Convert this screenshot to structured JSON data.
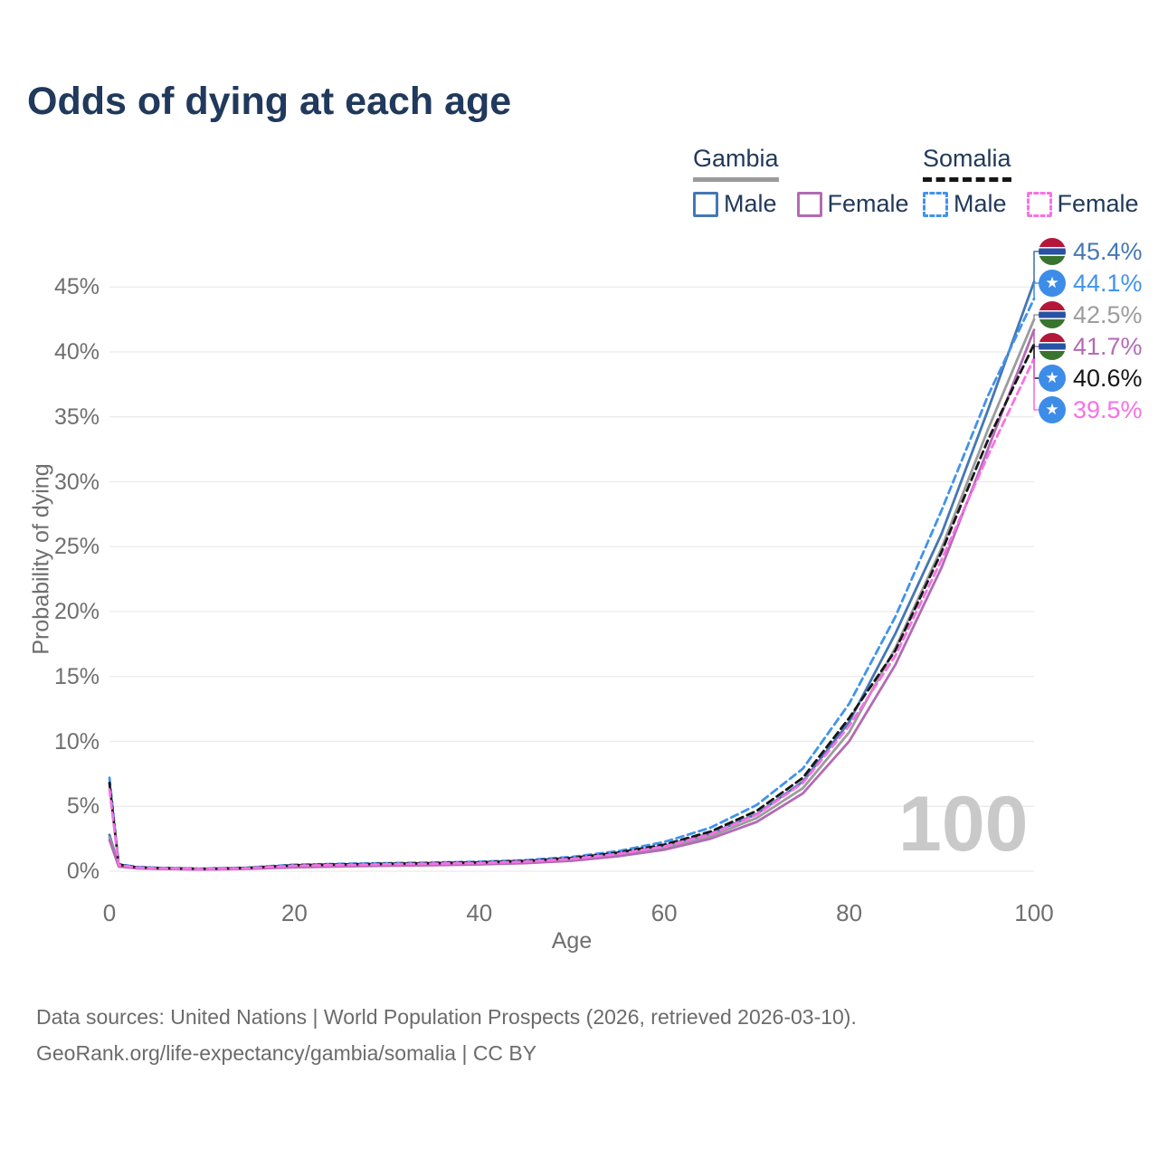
{
  "title": "Odds of dying at each age",
  "legend": {
    "groups": [
      {
        "label": "Gambia",
        "line_style": "solid",
        "line_color": "#9b9b9b",
        "items": [
          {
            "label": "Male",
            "color": "#4577b4",
            "dashed": false
          },
          {
            "label": "Female",
            "color": "#b36ab5",
            "dashed": false
          }
        ]
      },
      {
        "label": "Somalia",
        "line_style": "dashed",
        "line_color": "#161616",
        "items": [
          {
            "label": "Male",
            "color": "#4193ec",
            "dashed": true
          },
          {
            "label": "Female",
            "color": "#f771e6",
            "dashed": true
          }
        ]
      }
    ]
  },
  "watermark_age": "100",
  "footer": {
    "line1": "Data sources: United Nations | World Population Prospects (2026, retrieved 2026-03-10).",
    "line2": "GeoRank.org/life-expectancy/gambia/somalia | CC BY"
  },
  "chart_data": {
    "type": "line",
    "title": "Odds of dying at each age",
    "xlabel": "Age",
    "ylabel": "Probability of dying",
    "xlim": [
      0,
      100
    ],
    "ylim": [
      0,
      45
    ],
    "grid": "horizontal-only",
    "legend_position": "top-right",
    "xticks": [
      0,
      20,
      40,
      60,
      80,
      100
    ],
    "yticks": [
      0,
      5,
      10,
      15,
      20,
      25,
      30,
      35,
      40,
      45
    ],
    "ages": [
      0,
      1,
      3,
      5,
      10,
      15,
      20,
      25,
      30,
      35,
      40,
      45,
      50,
      55,
      60,
      65,
      70,
      75,
      80,
      85,
      90,
      95,
      100
    ],
    "series": [
      {
        "name": "Gambia Male",
        "country": "Gambia",
        "sex": "Male",
        "color": "#4577b4",
        "dashed": false,
        "flag": "gambia",
        "end_label": "45.4%",
        "values": [
          2.8,
          0.4,
          0.25,
          0.2,
          0.15,
          0.22,
          0.4,
          0.48,
          0.52,
          0.57,
          0.62,
          0.72,
          0.95,
          1.35,
          1.95,
          2.9,
          4.4,
          6.9,
          11.5,
          18.3,
          26.0,
          35.5,
          45.4
        ]
      },
      {
        "name": "Somalia Male",
        "country": "Somalia",
        "sex": "Male",
        "color": "#4193ec",
        "dashed": true,
        "flag": "somalia",
        "end_label": "44.1%",
        "values": [
          7.2,
          0.55,
          0.33,
          0.27,
          0.2,
          0.28,
          0.5,
          0.57,
          0.62,
          0.67,
          0.73,
          0.85,
          1.1,
          1.55,
          2.25,
          3.35,
          5.1,
          7.9,
          12.9,
          19.6,
          27.8,
          36.6,
          44.1
        ]
      },
      {
        "name": "Gambia",
        "country": "Gambia",
        "sex": "Both",
        "color": "#9c9c9c",
        "dashed": false,
        "flag": "gambia",
        "end_label": "42.5%",
        "values": [
          2.6,
          0.38,
          0.23,
          0.19,
          0.14,
          0.2,
          0.36,
          0.43,
          0.47,
          0.52,
          0.57,
          0.67,
          0.88,
          1.25,
          1.8,
          2.7,
          4.1,
          6.4,
          10.7,
          17.2,
          24.9,
          34.0,
          42.5
        ]
      },
      {
        "name": "Gambia Female",
        "country": "Gambia",
        "sex": "Female",
        "color": "#b36ab5",
        "dashed": false,
        "flag": "gambia",
        "end_label": "41.7%",
        "values": [
          2.4,
          0.36,
          0.22,
          0.18,
          0.13,
          0.18,
          0.3,
          0.37,
          0.42,
          0.47,
          0.52,
          0.62,
          0.8,
          1.15,
          1.65,
          2.5,
          3.8,
          6.0,
          10.0,
          15.9,
          23.4,
          32.5,
          41.7
        ]
      },
      {
        "name": "Somalia",
        "country": "Somalia",
        "sex": "Both",
        "color": "#161616",
        "dashed": true,
        "flag": "somalia",
        "end_label": "40.6%",
        "values": [
          6.8,
          0.5,
          0.3,
          0.25,
          0.18,
          0.26,
          0.46,
          0.52,
          0.57,
          0.62,
          0.68,
          0.79,
          1.02,
          1.43,
          2.05,
          3.05,
          4.65,
          7.2,
          11.8,
          17.0,
          24.6,
          33.2,
          40.6
        ]
      },
      {
        "name": "Somalia Female",
        "country": "Somalia",
        "sex": "Female",
        "color": "#f771e6",
        "dashed": true,
        "flag": "somalia",
        "end_label": "39.5%",
        "values": [
          6.3,
          0.47,
          0.28,
          0.23,
          0.17,
          0.24,
          0.42,
          0.48,
          0.53,
          0.58,
          0.63,
          0.74,
          0.95,
          1.33,
          1.9,
          2.85,
          4.35,
          6.8,
          11.2,
          16.6,
          24.0,
          32.0,
          39.5
        ]
      }
    ]
  }
}
